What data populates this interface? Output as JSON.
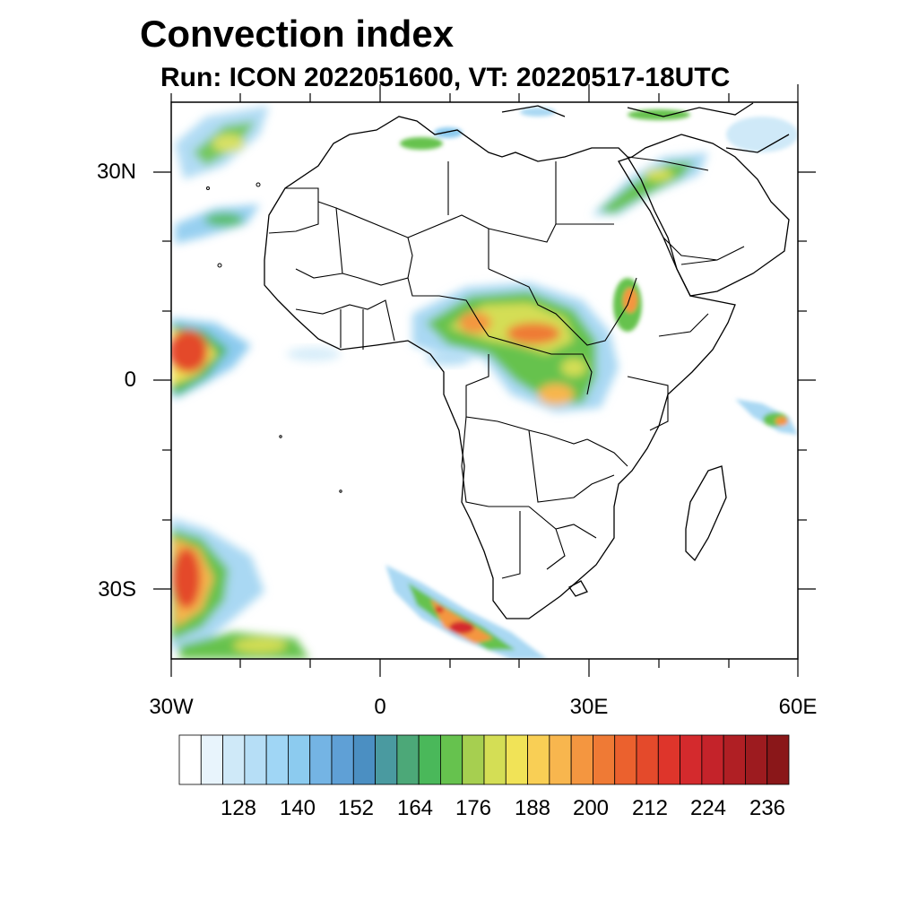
{
  "title": "Convection index",
  "subtitle": "Run: ICON 2022051600,  VT: 20220517-18UTC",
  "axes": {
    "lat_labels": [
      "30N",
      "0",
      "30S"
    ],
    "lon_labels": [
      "30W",
      "0",
      "30E",
      "60E"
    ],
    "lat_range": [
      -40,
      40
    ],
    "lon_range": [
      -30,
      60
    ]
  },
  "colorbar": {
    "labels": [
      "128",
      "140",
      "152",
      "164",
      "176",
      "188",
      "200",
      "212",
      "224",
      "236"
    ],
    "colors": [
      "#ffffff",
      "#e8f4fc",
      "#cfe9f8",
      "#b6def6",
      "#a0d6f5",
      "#8ccbef",
      "#74b4e4",
      "#5fa0d6",
      "#4b8fc2",
      "#4a9aa0",
      "#4ca878",
      "#4ab85a",
      "#66c24e",
      "#a6cf50",
      "#d4de55",
      "#f1e357",
      "#f9cf55",
      "#f8b64e",
      "#f49640",
      "#ef7a35",
      "#eb612e",
      "#e44a2b",
      "#de352b",
      "#d42a2d",
      "#c4232a",
      "#b01f24",
      "#9d1b1f",
      "#8a1719"
    ]
  }
}
